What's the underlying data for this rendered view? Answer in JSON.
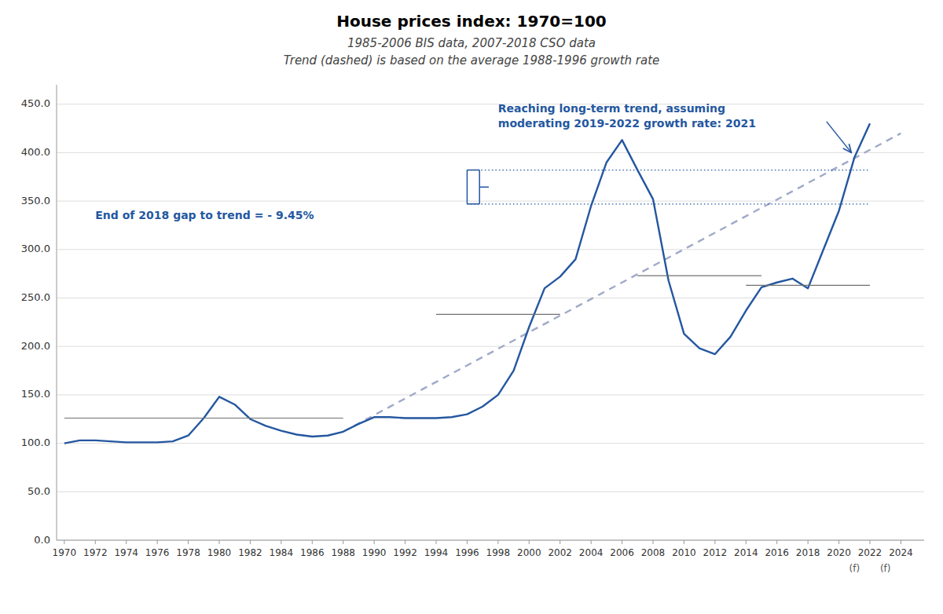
{
  "chart_data": {
    "type": "line",
    "title": "House prices index: 1970=100",
    "subtitle": [
      "1985-2006 BIS data, 2007-2018 CSO data",
      "Trend (dashed) is based on the average 1988-1996 growth rate"
    ],
    "x": [
      1970,
      1971,
      1972,
      1973,
      1974,
      1975,
      1976,
      1977,
      1978,
      1979,
      1980,
      1981,
      1982,
      1983,
      1984,
      1985,
      1986,
      1987,
      1988,
      1989,
      1990,
      1991,
      1992,
      1993,
      1994,
      1995,
      1996,
      1997,
      1998,
      1999,
      2000,
      2001,
      2002,
      2003,
      2004,
      2005,
      2006,
      2007,
      2008,
      2009,
      2010,
      2011,
      2012,
      2013,
      2014,
      2015,
      2016,
      2017,
      2018,
      2019,
      2020,
      2021,
      2022
    ],
    "series": [
      {
        "color": "#2457A0",
        "line_style": "solid",
        "values": [
          100,
          103,
          103,
          102,
          101,
          101,
          101,
          102,
          108,
          126,
          148,
          140,
          125,
          118,
          113,
          109,
          107,
          108,
          112,
          120,
          127,
          127,
          126,
          126,
          126,
          127,
          130,
          138,
          150,
          175,
          220,
          260,
          272,
          290,
          345,
          390,
          413,
          382,
          352,
          268,
          213,
          198,
          192,
          210,
          237,
          261,
          266,
          270,
          260,
          300,
          340,
          395,
          430
        ]
      },
      {
        "color": "#A0AAC8",
        "line_style": "dashed",
        "x": [
          1988,
          2024
        ],
        "values": [
          112,
          420
        ]
      }
    ],
    "hlines": {
      "color": "#707070",
      "lines": [
        {
          "x": [
            1970,
            1988
          ],
          "y": 126
        },
        {
          "x": [
            1994,
            2002
          ],
          "y": 233
        },
        {
          "x": [
            2007,
            2015
          ],
          "y": 273
        },
        {
          "x": [
            2014,
            2022
          ],
          "y": 263
        }
      ]
    },
    "gap_lines": {
      "color": "#2457A0",
      "line_style": "dotted",
      "bracket_x": 1996,
      "lines": [
        {
          "x": [
            1996,
            2022
          ],
          "y": 382
        },
        {
          "x": [
            1996,
            2022
          ],
          "y": 347
        }
      ]
    },
    "annotations": {
      "color": "#2457A0",
      "items": [
        {
          "text": [
            "End of 2018 gap to trend = - 9.45%"
          ],
          "x": 1972,
          "y": 335
        },
        {
          "text": [
            "Reaching long-term trend, assuming",
            "moderating 2019-2022 growth rate: 2021"
          ],
          "x": 1998,
          "y": 450
        }
      ],
      "arrow": {
        "from": [
          2019.2,
          432
        ],
        "to": [
          2020.8,
          400
        ]
      }
    },
    "forecast_labels": [
      {
        "text": "(f)",
        "x": 2021
      },
      {
        "text": "(f)",
        "x": 2023
      }
    ],
    "xlim": [
      1969.5,
      2025.5
    ],
    "xticks": [
      1970,
      1972,
      1974,
      1976,
      1978,
      1980,
      1982,
      1984,
      1986,
      1988,
      1990,
      1992,
      1994,
      1996,
      1998,
      2000,
      2002,
      2004,
      2006,
      2008,
      2010,
      2012,
      2014,
      2016,
      2018,
      2020,
      2022,
      2024
    ],
    "ylim": [
      0,
      470
    ],
    "yticks": [
      {
        "value": 0.0,
        "label": "0.0"
      },
      {
        "value": 50.0,
        "label": "50.0"
      },
      {
        "value": 100.0,
        "label": "100.0"
      },
      {
        "value": 150.0,
        "label": "150.0"
      },
      {
        "value": 200.0,
        "label": "200.0"
      },
      {
        "value": 250.0,
        "label": "250.0"
      },
      {
        "value": 300.0,
        "label": "300.0"
      },
      {
        "value": 350.0,
        "label": "350.0"
      },
      {
        "value": 400.0,
        "label": "400.0"
      },
      {
        "value": 450.0,
        "label": "450.0"
      }
    ],
    "grid": true
  }
}
